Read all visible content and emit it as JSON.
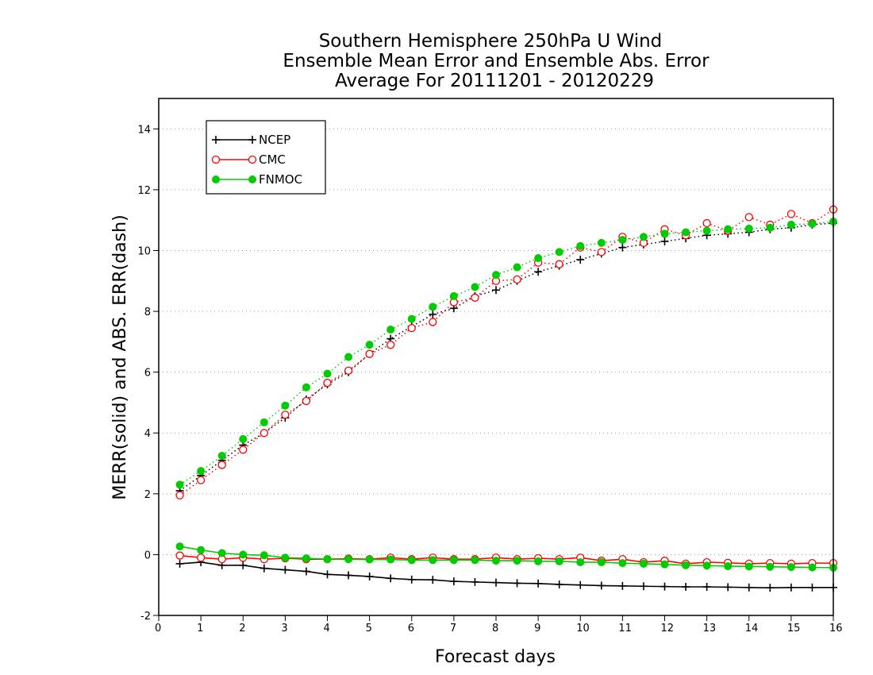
{
  "chart_data": {
    "type": "line",
    "title": [
      "Southern Hemisphere 250hPa U Wind",
      "Ensemble Mean Error and Ensemble Abs. Error",
      "Average For 20111201 - 20120229"
    ],
    "xlabel": "Forecast days",
    "ylabel": "MERR(solid) and ABS. ERR(dash)",
    "xlim": [
      0,
      16
    ],
    "ylim": [
      -2,
      15
    ],
    "xticks": [
      "0",
      "1",
      "2",
      "3",
      "4",
      "5",
      "6",
      "7",
      "8",
      "9",
      "10",
      "11",
      "12",
      "13",
      "14",
      "15",
      "16"
    ],
    "yticks": [
      "-2",
      "0",
      "2",
      "4",
      "6",
      "8",
      "10",
      "12",
      "14"
    ],
    "grid": "horizontal dotted",
    "legend_placement": "top-left",
    "x": [
      0.5,
      1,
      1.5,
      2,
      2.5,
      3,
      3.5,
      4,
      4.5,
      5,
      5.5,
      6,
      6.5,
      7,
      7.5,
      8,
      8.5,
      9,
      9.5,
      10,
      10.5,
      11,
      11.5,
      12,
      12.5,
      13,
      13.5,
      14,
      14.5,
      15,
      15.5,
      16
    ],
    "series": [
      {
        "name": "NCEP",
        "color": "#000000",
        "marker": "plus",
        "merr": [
          -0.3,
          -0.25,
          -0.35,
          -0.35,
          -0.45,
          -0.5,
          -0.55,
          -0.65,
          -0.68,
          -0.72,
          -0.78,
          -0.82,
          -0.83,
          -0.88,
          -0.9,
          -0.92,
          -0.94,
          -0.95,
          -0.98,
          -1.0,
          -1.02,
          -1.03,
          -1.04,
          -1.05,
          -1.06,
          -1.06,
          -1.07,
          -1.08,
          -1.09,
          -1.08,
          -1.08,
          -1.08
        ],
        "abs_err": [
          2.1,
          2.6,
          3.1,
          3.6,
          4.0,
          4.5,
          5.1,
          5.6,
          6.0,
          6.6,
          7.1,
          7.5,
          7.9,
          8.1,
          8.5,
          8.7,
          9.0,
          9.3,
          9.5,
          9.7,
          9.9,
          10.1,
          10.2,
          10.3,
          10.4,
          10.5,
          10.55,
          10.6,
          10.7,
          10.75,
          10.85,
          10.9
        ]
      },
      {
        "name": "CMC",
        "color": "#ff0000",
        "marker": "circle",
        "merr": [
          -0.03,
          -0.1,
          -0.15,
          -0.1,
          -0.15,
          -0.12,
          -0.15,
          -0.15,
          -0.13,
          -0.15,
          -0.1,
          -0.15,
          -0.1,
          -0.15,
          -0.15,
          -0.1,
          -0.15,
          -0.12,
          -0.15,
          -0.1,
          -0.2,
          -0.15,
          -0.25,
          -0.2,
          -0.3,
          -0.25,
          -0.27,
          -0.3,
          -0.28,
          -0.3,
          -0.28,
          -0.28
        ],
        "abs_err": [
          1.95,
          2.45,
          2.95,
          3.45,
          4.0,
          4.6,
          5.05,
          5.65,
          6.05,
          6.6,
          6.9,
          7.45,
          7.65,
          8.3,
          8.45,
          9.0,
          9.05,
          9.6,
          9.55,
          10.1,
          9.95,
          10.45,
          10.25,
          10.7,
          10.5,
          10.9,
          10.65,
          11.1,
          10.85,
          11.2,
          10.9,
          11.35
        ]
      },
      {
        "name": "FNMOC",
        "color": "#00cc00",
        "marker": "dot",
        "merr": [
          0.27,
          0.15,
          0.05,
          0.0,
          -0.02,
          -0.1,
          -0.12,
          -0.15,
          -0.15,
          -0.16,
          -0.16,
          -0.18,
          -0.18,
          -0.18,
          -0.18,
          -0.2,
          -0.2,
          -0.22,
          -0.22,
          -0.25,
          -0.25,
          -0.28,
          -0.3,
          -0.32,
          -0.35,
          -0.36,
          -0.38,
          -0.39,
          -0.4,
          -0.41,
          -0.42,
          -0.43
        ],
        "abs_err": [
          2.3,
          2.75,
          3.25,
          3.8,
          4.35,
          4.9,
          5.5,
          5.95,
          6.5,
          6.9,
          7.4,
          7.75,
          8.15,
          8.5,
          8.8,
          9.2,
          9.45,
          9.75,
          9.95,
          10.15,
          10.25,
          10.35,
          10.45,
          10.55,
          10.6,
          10.65,
          10.7,
          10.72,
          10.75,
          10.85,
          10.88,
          10.95
        ]
      }
    ]
  }
}
